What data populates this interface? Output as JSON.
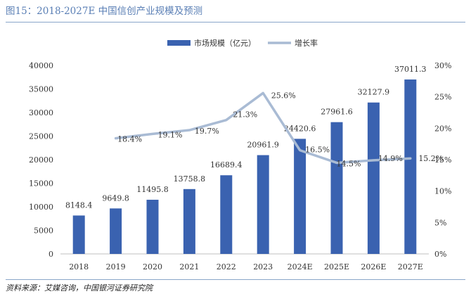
{
  "title": "图15：2018-2027E 中国信创产业规模及预测",
  "source": "资料来源：艾媒咨询，中国银河证券研究院",
  "colors": {
    "bar": "#3a62b0",
    "line": "#a9bbd4",
    "title": "#5a7fb5"
  },
  "chart_data": {
    "type": "bar",
    "categories": [
      "2018",
      "2019",
      "2020",
      "2021",
      "2022",
      "2023",
      "2024E",
      "2025E",
      "2026E",
      "2027E"
    ],
    "series": [
      {
        "name": "市场规模（亿元）",
        "type": "bar",
        "axis": "left",
        "values": [
          8148.4,
          9649.8,
          11495.8,
          13758.8,
          16689.4,
          20961.9,
          24420.6,
          27961.6,
          32127.9,
          37011.3
        ],
        "labels": [
          "8148.4",
          "9649.8",
          "11495.8",
          "13758.8",
          "16689.4",
          "20961.9",
          "24420.6",
          "27961.6",
          "32127.9",
          "37011.3"
        ]
      },
      {
        "name": "增长率",
        "type": "line",
        "axis": "right",
        "values": [
          null,
          18.4,
          19.1,
          19.7,
          21.3,
          25.6,
          16.5,
          14.5,
          14.9,
          15.2
        ],
        "labels": [
          null,
          "18.4%",
          "19.1%",
          "19.7%",
          "21.3%",
          "25.6%",
          "16.5%",
          "14.5%",
          "14.9%",
          "15.2%"
        ]
      }
    ],
    "y_left": {
      "min": 0,
      "max": 40000,
      "ticks": [
        "0",
        "5000",
        "10000",
        "15000",
        "20000",
        "25000",
        "30000",
        "35000",
        "40000"
      ]
    },
    "y_right": {
      "min": 0,
      "max": 30,
      "ticks": [
        "0%",
        "5%",
        "10%",
        "15%",
        "20%",
        "25%",
        "30%"
      ]
    },
    "legend_position": "top-center",
    "grid": false
  }
}
